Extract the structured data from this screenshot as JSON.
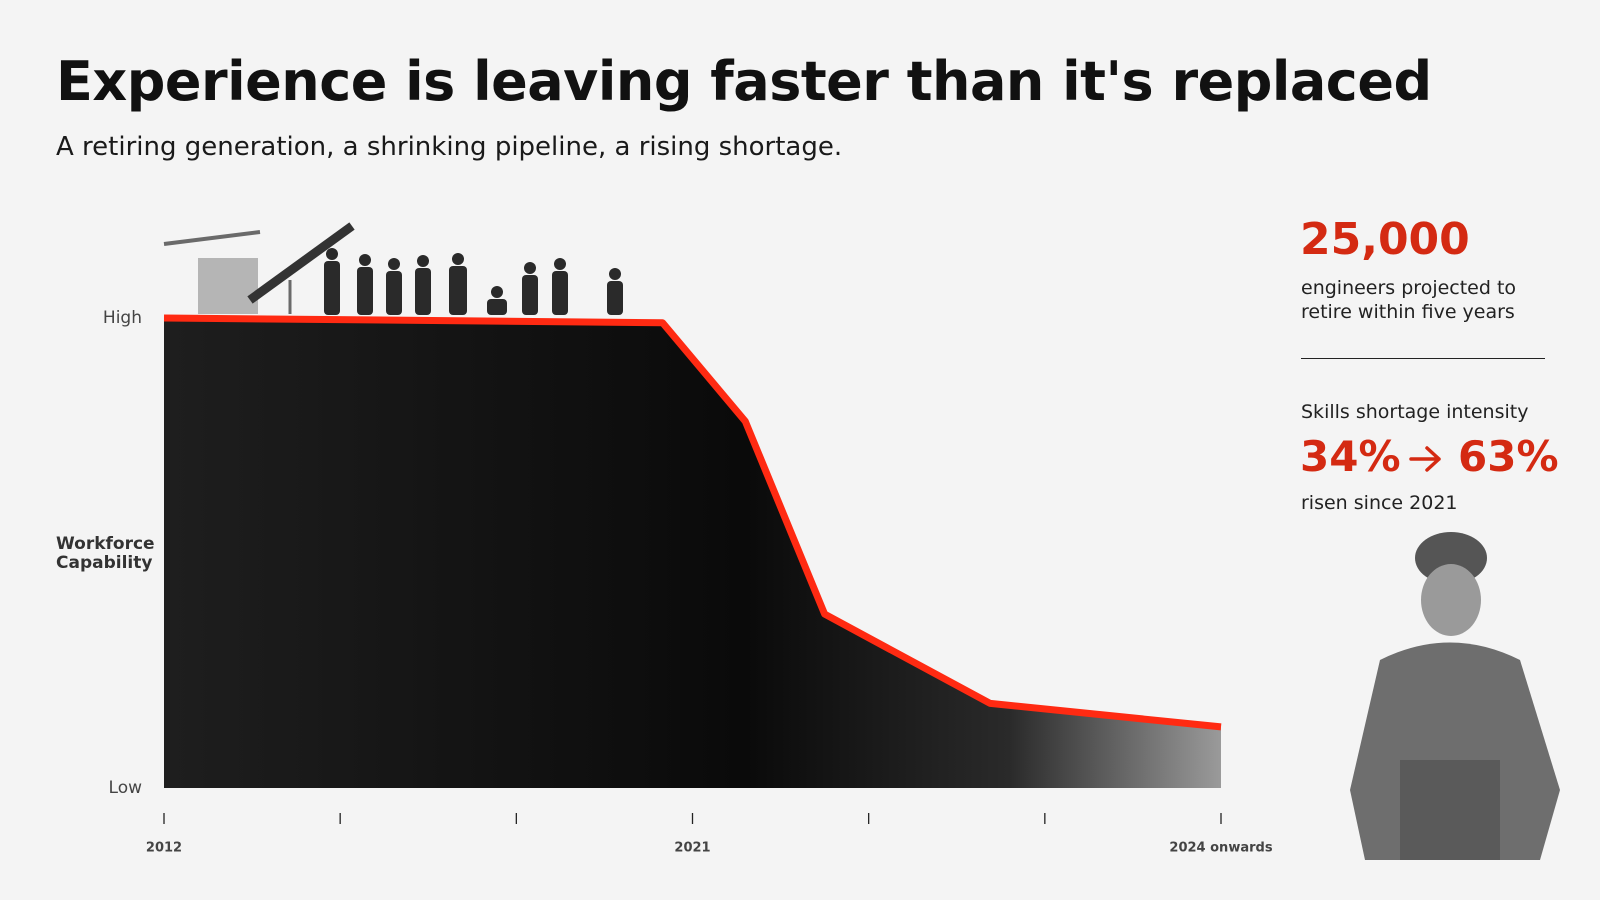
{
  "chart_data": {
    "type": "area",
    "title": "Experience is leaving faster than it's replaced",
    "subtitle": "A retiring generation, a shrinking pipeline, a rising shortage.",
    "y_label": "Workforce Capability",
    "categories": [
      "2012",
      null,
      null,
      "2021",
      null,
      null,
      "2024 onwards"
    ],
    "x": [
      0,
      2.83,
      3.3,
      3.75,
      4.69,
      6
    ],
    "values": [
      100,
      99,
      78,
      37,
      18,
      13
    ],
    "xlim": [
      0,
      6
    ],
    "ylim": [
      0,
      100
    ],
    "yticks": [
      {
        "value": 0,
        "label": "Low"
      },
      {
        "value": 100,
        "label": "High"
      }
    ],
    "color": "#ff2a12",
    "grid": false
  },
  "side_panel": {
    "stat_1": {
      "value": "25,000",
      "text": "engineers projected to retire within five years"
    },
    "stat_2": {
      "heading": "Skills shortage intensity",
      "from": "34%",
      "to": "63%",
      "text": "risen since 2021"
    }
  }
}
